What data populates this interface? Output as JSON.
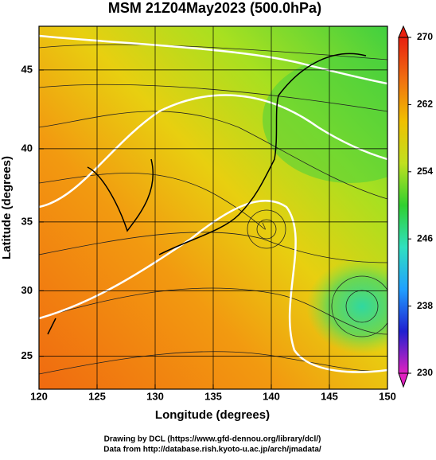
{
  "title": "MSM 21Z04May2023 (500.0hPa)",
  "x_axis": {
    "label": "Longitude (degrees)",
    "lim": [
      120,
      150
    ],
    "ticks": [
      120,
      125,
      130,
      135,
      140,
      145,
      150
    ]
  },
  "y_axis": {
    "label": "Latitude  (degrees)",
    "lim": [
      22.4,
      47.6
    ],
    "ticks": [
      25,
      30,
      35,
      40,
      45
    ],
    "scale": "mercator"
  },
  "colorbar": {
    "lim": [
      230,
      270
    ],
    "ticks": [
      230,
      238,
      246,
      254,
      262,
      270
    ],
    "colors": [
      "#e020c0",
      "#2020d0",
      "#20a0ff",
      "#30e0c0",
      "#30d030",
      "#c0e020",
      "#f0c000",
      "#f07010",
      "#e82010"
    ]
  },
  "credits": [
    "Drawing by DCL (https://www.gfd-dennou.org/library/dcl/)",
    "Data from http://database.rish.kyoto-u.ac.jp/arch/jmadata/"
  ]
}
